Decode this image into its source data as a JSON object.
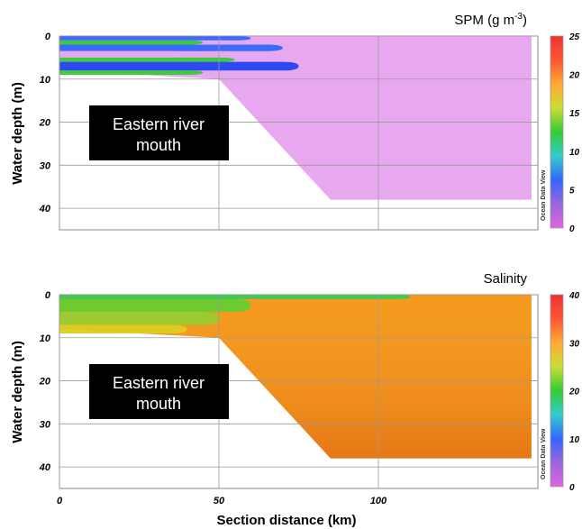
{
  "chart_data": [
    {
      "type": "heatmap",
      "title": "SPM (g m-3)",
      "title_main": "SPM (g m",
      "title_sup": "-3",
      "title_close": ")",
      "ylabel": "Water depth (m)",
      "xlabel": "",
      "x_ticks": [
        "0",
        "50",
        "100"
      ],
      "y_ticks": [
        "0",
        "10",
        "20",
        "30",
        "40"
      ],
      "xlim": [
        0,
        150
      ],
      "ylim": [
        45,
        0
      ],
      "grid": true,
      "annotation_lines": [
        "Eastern river",
        "mouth"
      ],
      "colorbar": {
        "range": [
          0,
          25
        ],
        "ticks": [
          "0",
          "5",
          "10",
          "15",
          "20",
          "25"
        ],
        "label": "Ocean Data View",
        "colors": [
          "#e066e0",
          "#9966dd",
          "#3366ff",
          "#33cccc",
          "#33cc33",
          "#ccdd33",
          "#ffaa33",
          "#ff5533",
          "#ee3333"
        ]
      },
      "section_bottom": [
        [
          0,
          8
        ],
        [
          50,
          10
        ],
        [
          85,
          38
        ],
        [
          148,
          38
        ]
      ],
      "bands": [
        {
          "depth_top": 0,
          "depth_bottom": 1,
          "x_end": 60,
          "value": 4,
          "color": "#3366ff"
        },
        {
          "depth_top": 1,
          "depth_bottom": 2,
          "x_end": 45,
          "value": 11,
          "color": "#33cc33"
        },
        {
          "depth_top": 2,
          "depth_bottom": 3.5,
          "x_end": 70,
          "value": 4,
          "color": "#3366ff"
        },
        {
          "depth_top": 3.5,
          "depth_bottom": 5,
          "x_end": 40,
          "value": 0.8,
          "color": "#e8a8f0"
        },
        {
          "depth_top": 5,
          "depth_bottom": 6,
          "x_end": 55,
          "value": 11,
          "color": "#33cc33"
        },
        {
          "depth_top": 6,
          "depth_bottom": 8,
          "x_end": 75,
          "value": 3,
          "color": "#2244ee"
        },
        {
          "depth_top": 8,
          "depth_bottom": 9,
          "x_end": 45,
          "value": 11,
          "color": "#33cc33"
        }
      ],
      "background_value": 0.5,
      "background_color": "#e8a8f0"
    },
    {
      "type": "heatmap",
      "title": "Salinity",
      "title_main": "Salinity",
      "title_sup": "",
      "title_close": "",
      "ylabel": "Water depth (m)",
      "xlabel": "Section distance (km)",
      "x_ticks": [
        "0",
        "50",
        "100"
      ],
      "y_ticks": [
        "0",
        "10",
        "20",
        "30",
        "40"
      ],
      "xlim": [
        0,
        150
      ],
      "ylim": [
        45,
        0
      ],
      "grid": true,
      "annotation_lines": [
        "Eastern river",
        "mouth"
      ],
      "colorbar": {
        "range": [
          0,
          40
        ],
        "ticks": [
          "0",
          "10",
          "20",
          "30",
          "40"
        ],
        "label": "Ocean Data View",
        "colors": [
          "#e066e0",
          "#9966dd",
          "#3366ff",
          "#33cccc",
          "#33cc33",
          "#ccdd33",
          "#ffaa33",
          "#ff5533",
          "#ee3333"
        ]
      },
      "section_bottom": [
        [
          0,
          8
        ],
        [
          50,
          10
        ],
        [
          85,
          38
        ],
        [
          148,
          38
        ]
      ],
      "bands": [
        {
          "depth_top": 0,
          "depth_bottom": 1,
          "x_end": 110,
          "value": 18,
          "color": "#33cc55"
        },
        {
          "depth_top": 1,
          "depth_bottom": 4,
          "x_end": 60,
          "value": 20,
          "color": "#66cc33"
        },
        {
          "depth_top": 4,
          "depth_bottom": 7,
          "x_end": 50,
          "value": 22,
          "color": "#99cc33"
        },
        {
          "depth_top": 7,
          "depth_bottom": 9,
          "x_end": 40,
          "value": 25,
          "color": "#ddcc22"
        }
      ],
      "background_value": 30,
      "background_color": "#f59a1e"
    }
  ]
}
